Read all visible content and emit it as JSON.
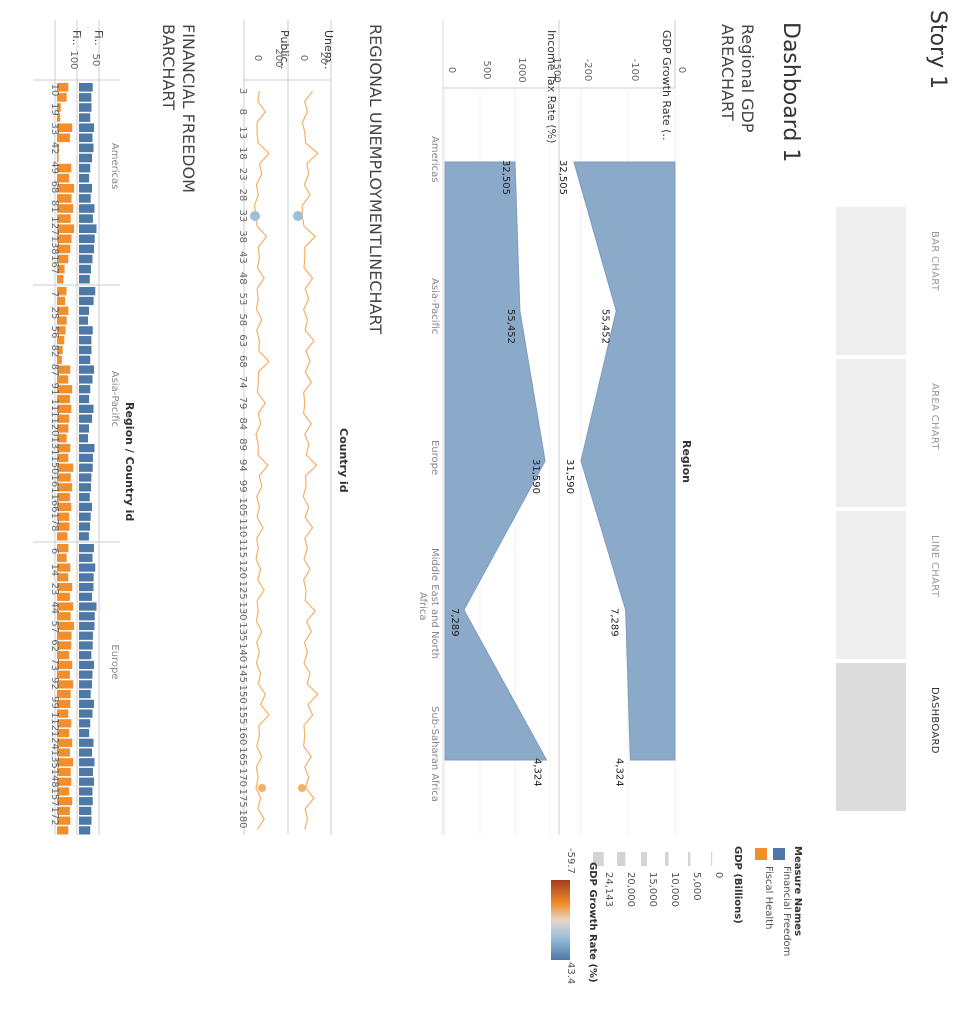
{
  "story": {
    "title": "Story 1"
  },
  "tabs": [
    {
      "label": "BAR CHART",
      "active": false
    },
    {
      "label": "AREA CHART",
      "active": false
    },
    {
      "label": "LINE CHART",
      "active": false
    },
    {
      "label": "DASHBOARD",
      "active": true
    }
  ],
  "dashboard": {
    "title": "Dashboard 1"
  },
  "area_sheet": {
    "title_line1": "Regional GDP",
    "title_line2": "AREACHART",
    "dimension_header": "Region",
    "measure1_header": "GDP Growth Rate (..",
    "measure2_header": "Income Tax Rate (%)",
    "measure1_ticks": [
      "0",
      "-100",
      "-200"
    ],
    "measure2_ticks": [
      "1500",
      "1000",
      "500",
      "0"
    ]
  },
  "line_sheet": {
    "title": "REGIONAL UNEMPLOYMENTLINECHART",
    "dimension_header": "Country id",
    "measure1_header": "Unem..",
    "measure2_header": "Public..",
    "measure1_ticks": [
      "20",
      "0"
    ],
    "measure2_ticks": [
      "200",
      "0"
    ],
    "row_labels": [
      "3",
      "8",
      "13",
      "18",
      "23",
      "28",
      "33",
      "38",
      "43",
      "48",
      "53",
      "58",
      "63",
      "68",
      "74",
      "79",
      "84",
      "89",
      "94",
      "99",
      "105",
      "110",
      "115",
      "120",
      "125",
      "130",
      "135",
      "140",
      "145",
      "150",
      "155",
      "160",
      "165",
      "170",
      "175",
      "180"
    ]
  },
  "bar_sheet": {
    "title_line1": "FINANCIAL FREEDOM",
    "title_line2": "BARCHART",
    "dimension_header": "Region / Country id",
    "measure1_header": "Fi..",
    "measure2_header": "Fi..",
    "measure1_ticks": [
      "50"
    ],
    "measure2_ticks": [
      "100"
    ],
    "groups": [
      {
        "region": "Americas",
        "labels": [
          "10",
          "19",
          "33",
          "42",
          "49",
          "68",
          "81",
          "127",
          "138",
          "167"
        ]
      },
      {
        "region": "Asia-Pacific",
        "labels": [
          "7",
          "25",
          "56",
          "82",
          "87",
          "91",
          "111",
          "120",
          "131",
          "150",
          "161",
          "166",
          "178"
        ]
      },
      {
        "region": "Europe",
        "labels": [
          "6",
          "14",
          "23",
          "44",
          "57",
          "62",
          "73",
          "92",
          "99",
          "112",
          "124",
          "135",
          "148",
          "157",
          "172"
        ]
      }
    ]
  },
  "legend": {
    "measure_names_title": "Measure Names",
    "measure_names": [
      {
        "label": "Financial Freedom",
        "color": "#4e79a7"
      },
      {
        "label": "Fiscal Health",
        "color": "#f28e2b"
      }
    ],
    "size_title": "GDP (Billions)",
    "size_items": [
      "0",
      "5,000",
      "10,000",
      "15,000",
      "20,000",
      "24,143"
    ],
    "color_title": "GDP Growth Rate (%)",
    "color_min": "-59.7",
    "color_max": "43.4"
  },
  "chart_data": [
    {
      "type": "area",
      "categories": [
        "Americas",
        "Asia-Pacific",
        "Europe",
        "Middle East and North Africa",
        "Sub-Saharan Africa"
      ],
      "series": [
        {
          "name": "GDP Growth Rate (..",
          "values": [
            -215,
            -125,
            -200,
            -105,
            -95
          ]
        },
        {
          "name": "Income Tax Rate (%)",
          "values": [
            1000,
            1070,
            1430,
            270,
            1450
          ]
        }
      ],
      "data_labels": [
        "32,505",
        "55,452",
        "31,590",
        "7,289",
        "4,324"
      ]
    },
    {
      "type": "line",
      "xlabel": "Country id",
      "x_ticks": [
        "3",
        "8",
        "13",
        "18",
        "23",
        "28",
        "33",
        "38",
        "43",
        "48",
        "53",
        "58",
        "63",
        "68",
        "74",
        "79",
        "84",
        "89",
        "94",
        "99",
        "105",
        "110",
        "115",
        "120",
        "125",
        "130",
        "135",
        "140",
        "145",
        "150",
        "155",
        "160",
        "165",
        "170",
        "175",
        "180"
      ],
      "series": [
        {
          "name": "Unem..",
          "values": [
            12,
            8,
            6,
            16,
            9,
            10,
            4,
            14,
            6,
            12,
            9,
            8,
            13,
            10,
            11,
            6,
            11,
            9,
            15,
            7,
            9,
            12,
            8,
            10,
            7,
            14,
            11,
            8,
            10,
            16,
            12,
            6,
            11,
            9,
            13,
            8
          ]
        },
        {
          "name": "Public..",
          "values": [
            70,
            120,
            50,
            150,
            90,
            60,
            40,
            130,
            70,
            110,
            60,
            90,
            70,
            150,
            60,
            120,
            80,
            60,
            140,
            90,
            70,
            100,
            60,
            80,
            110,
            60,
            90,
            70,
            80,
            120,
            150,
            70,
            90,
            60,
            80,
            110
          ]
        }
      ]
    },
    {
      "type": "bar",
      "groups": [
        "Americas",
        "Asia-Pacific",
        "Europe"
      ],
      "series": [
        {
          "name": "Financial Freedom",
          "values": [
            [
              55,
              50,
              60,
              58,
              45,
              52,
              62,
              70,
              60,
              48
            ],
            [
              65,
              40,
              55,
              50,
              60,
              45,
              58,
              40,
              62,
              55,
              48,
              52,
              44
            ],
            [
              60,
              65,
              58,
              70,
              62,
              55,
              60,
              52,
              60,
              45,
              58,
              62,
              60,
              55,
              50
            ]
          ]
        },
        {
          "name": "Fiscal Health",
          "values": [
            [
              60,
              20,
              80,
              10,
              75,
              90,
              85,
              90,
              70,
              40
            ],
            [
              50,
              60,
              45,
              30,
              70,
              80,
              75,
              60,
              70,
              85,
              80,
              75,
              65
            ],
            [
              60,
              70,
              80,
              85,
              90,
              75,
              80,
              85,
              70,
              75,
              80,
              85,
              75,
              80,
              70
            ]
          ]
        }
      ]
    }
  ]
}
